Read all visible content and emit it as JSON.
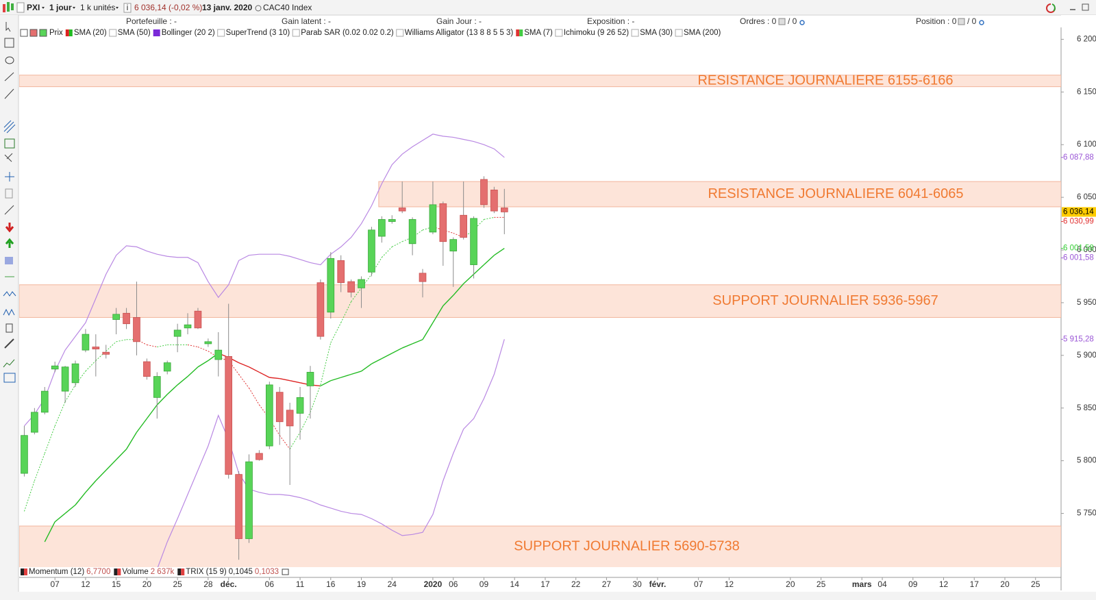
{
  "toolbar": {
    "symbol": "PXI",
    "period": "1 jour",
    "units": "1 k unités",
    "last": "6 036,14 (-0,02 %)",
    "date": "13 janv. 2020",
    "instrument": "CAC40 Index"
  },
  "header": [
    "Portefeuille : -",
    "Gain latent : -",
    "Gain Jour : -",
    "Exposition : -",
    "Ordres : 0",
    "/ 0",
    "Position : 0",
    "/ 0"
  ],
  "chart_data": {
    "type": "candlestick",
    "candle_colors": {
      "up": "#58d458",
      "down": "#e46f6f"
    },
    "open": [
      5788,
      5827,
      5846,
      5887,
      5866,
      5874,
      5905,
      5908,
      5903,
      5934,
      5940,
      5936,
      5894,
      5860,
      5885,
      5918,
      5926,
      5942,
      5911,
      5896,
      5899,
      5787,
      5726,
      5807,
      5814,
      5865,
      5848,
      5845,
      5871,
      5969,
      5941,
      5990,
      5970,
      5964,
      5979,
      6013,
      6027,
      6040,
      6006,
      5978,
      6017,
      6044,
      5999,
      6033,
      5986,
      6067,
      6057,
      6040
    ],
    "high": [
      5833,
      5850,
      5870,
      5894,
      5890,
      5895,
      5925,
      5920,
      5910,
      5945,
      5945,
      5970,
      5897,
      5884,
      5895,
      5930,
      5940,
      5945,
      5916,
      5922,
      5949,
      5790,
      5806,
      5810,
      5875,
      5870,
      5855,
      5870,
      5890,
      5972,
      5998,
      5995,
      5972,
      5975,
      6022,
      6032,
      6033,
      6065,
      6031,
      5982,
      6065,
      6046,
      6012,
      6065,
      6032,
      6070,
      6060,
      6058
    ],
    "low": [
      5785,
      5825,
      5844,
      5884,
      5855,
      5870,
      5903,
      5880,
      5897,
      5920,
      5925,
      5900,
      5877,
      5840,
      5882,
      5903,
      5920,
      5925,
      5908,
      5880,
      5783,
      5706,
      5722,
      5800,
      5811,
      5815,
      5777,
      5820,
      5840,
      5915,
      5935,
      5960,
      5955,
      5945,
      5975,
      6007,
      6025,
      6035,
      5995,
      5955,
      6015,
      5985,
      5965,
      6010,
      5973,
      6040,
      6035,
      6015
    ],
    "close": [
      5824,
      5846,
      5866,
      5890,
      5889,
      5892,
      5920,
      5906,
      5901,
      5939,
      5930,
      5913,
      5880,
      5880,
      5893,
      5924,
      5929,
      5926,
      5913,
      5905,
      5787,
      5726,
      5799,
      5801,
      5872,
      5837,
      5833,
      5860,
      5884,
      5918,
      5992,
      5969,
      5960,
      5972,
      6019,
      6029,
      6029,
      6037,
      6029,
      5970,
      6043,
      6008,
      6010,
      6012,
      6030,
      6043,
      6037,
      6036.14
    ],
    "indicators": [
      {
        "name": "Prix",
        "active": true
      },
      {
        "name": "SMA (20)",
        "active": true,
        "style": "solid",
        "colors": [
          "#22bb22",
          "#dd2222"
        ],
        "values": [
          null,
          null,
          5723,
          5742,
          5750,
          5758,
          5770,
          5781,
          5791,
          5801,
          5811,
          5827,
          5840,
          5853,
          5863,
          5872,
          5880,
          5889,
          5895,
          5902,
          5898,
          5893,
          5889,
          5884,
          5879,
          5878,
          5876,
          5874,
          5872,
          5871,
          5876,
          5879,
          5882,
          5885,
          5892,
          5897,
          5902,
          5907,
          5911,
          5915,
          5931,
          5947,
          5957,
          5968,
          5977,
          5986,
          5995,
          6001.58
        ]
      },
      {
        "name": "SMA (50)",
        "active": false
      },
      {
        "name": "Bollinger (20 2)",
        "active": true,
        "color": "#b988e3",
        "upper": [
          5833,
          5844,
          5859,
          5885,
          5905,
          5918,
          5931,
          5954,
          5977,
          5995,
          6004,
          6003,
          5999,
          5996,
          5994,
          5993,
          5993,
          5988,
          5970,
          5955,
          5967,
          5990,
          5995,
          5996,
          5996,
          5996,
          5994,
          5991,
          5988,
          5986,
          5996,
          6003,
          6012,
          6025,
          6042,
          6063,
          6081,
          6091,
          6098,
          6104,
          6110,
          6108,
          6107,
          6105,
          6103,
          6100,
          6096,
          6087.88
        ],
        "lower": [
          null,
          null,
          null,
          null,
          null,
          null,
          null,
          null,
          null,
          null,
          null,
          null,
          null,
          5697,
          5723,
          5745,
          5768,
          5791,
          5814,
          5843,
          5820,
          5788,
          5773,
          5770,
          5768,
          5768,
          5767,
          5765,
          5762,
          5758,
          5755,
          5752,
          5750,
          5749,
          5745,
          5740,
          5734,
          5729,
          5730,
          5732,
          5749,
          5781,
          5807,
          5830,
          5840,
          5859,
          5882,
          5915.28
        ]
      },
      {
        "name": "SuperTrend (3 10)",
        "active": false
      },
      {
        "name": "Parab SAR (0.02 0.02 0.2)",
        "active": false
      },
      {
        "name": "Williams Alligator (13 8 8 5 5 3)",
        "active": false
      },
      {
        "name": "SMA (7)",
        "active": true,
        "style": "dotted",
        "colors": [
          "#44cc44",
          "#e03333"
        ],
        "values": [
          5752,
          5781,
          5807,
          5833,
          5856,
          5872,
          5885,
          5895,
          5904,
          5913,
          5915,
          5915,
          5910,
          5908,
          5910,
          5910,
          5910,
          5908,
          5904,
          5898,
          5895,
          5882,
          5869,
          5853,
          5840,
          5824,
          5811,
          5827,
          5846,
          5872,
          5912,
          5931,
          5951,
          5964,
          5977,
          5993,
          6003,
          6008,
          6012,
          6019,
          6022,
          6019,
          6016,
          6012,
          6019,
          6029,
          6031,
          6030.99
        ]
      },
      {
        "name": "Ichimoku (9 26 52)",
        "active": false
      },
      {
        "name": "SMA (30)",
        "active": false
      },
      {
        "name": "SMA (200)",
        "active": false
      }
    ],
    "zones": [
      {
        "label": "RESISTANCE JOURNALIERE 6155-6166",
        "low": 6155,
        "high": 6166
      },
      {
        "label": "RESISTANCE JOURNALIERE 6041-6065",
        "low": 6041,
        "high": 6065
      },
      {
        "label": "SUPPORT JOURNALIER 5936-5967",
        "low": 5936,
        "high": 5967
      },
      {
        "label": "SUPPORT JOURNALIER 5690-5738",
        "low": 5690,
        "high": 5738
      }
    ],
    "price_tags": [
      {
        "value": 6087.88,
        "label": "6 087,88",
        "color": "#9a55d6"
      },
      {
        "value": 6036.14,
        "label": "6 036,14",
        "color": "#000000",
        "background": "#ffcc00"
      },
      {
        "value": 6030.99,
        "label": "6 030,99",
        "color": "#e03030"
      },
      {
        "value": 6001.58,
        "label": "6 001,58",
        "color": "#33cc33"
      },
      {
        "value": 6001.58,
        "label": "6 001,58",
        "color": "#9a55d6"
      },
      {
        "value": 5915.28,
        "label": "5 915,28",
        "color": "#9a55d6"
      }
    ],
    "ylim": [
      5699,
      6210
    ],
    "yticks": [
      {
        "value": 5750,
        "label": "5 750"
      },
      {
        "value": 5800,
        "label": "5 800"
      },
      {
        "value": 5850,
        "label": "5 850"
      },
      {
        "value": 5900,
        "label": "5 900"
      },
      {
        "value": 5950,
        "label": "5 950"
      },
      {
        "value": 6000,
        "label": "6 000"
      },
      {
        "value": 6050,
        "label": "6 050"
      },
      {
        "value": 6100,
        "label": "6 100"
      },
      {
        "value": 6150,
        "label": "6 150"
      },
      {
        "value": 6200,
        "label": "6 200"
      }
    ],
    "xlim": [
      -0.5,
      101.5
    ],
    "xticks": [
      {
        "value": 3,
        "label": "07"
      },
      {
        "value": 6,
        "label": "12"
      },
      {
        "value": 9,
        "label": "15"
      },
      {
        "value": 12,
        "label": "20"
      },
      {
        "value": 15,
        "label": "25"
      },
      {
        "value": 18,
        "label": "28"
      },
      {
        "value": 20,
        "label": "déc."
      },
      {
        "value": 24,
        "label": "06"
      },
      {
        "value": 27,
        "label": "11"
      },
      {
        "value": 30,
        "label": "16"
      },
      {
        "value": 33,
        "label": "19"
      },
      {
        "value": 36,
        "label": "24"
      },
      {
        "value": 40,
        "label": "2020"
      },
      {
        "value": 42,
        "label": "06"
      },
      {
        "value": 45,
        "label": "09"
      },
      {
        "value": 48,
        "label": "14"
      },
      {
        "value": 51,
        "label": "17"
      },
      {
        "value": 54,
        "label": "22"
      },
      {
        "value": 57,
        "label": "27"
      },
      {
        "value": 60,
        "label": "30"
      },
      {
        "value": 62,
        "label": "févr."
      },
      {
        "value": 66,
        "label": "07"
      },
      {
        "value": 69,
        "label": "12"
      },
      {
        "value": 75,
        "label": "20"
      },
      {
        "value": 78,
        "label": "25"
      },
      {
        "value": 82,
        "label": "mars"
      },
      {
        "value": 84,
        "label": "04"
      },
      {
        "value": 87,
        "label": "09"
      },
      {
        "value": 90,
        "label": "12"
      },
      {
        "value": 93,
        "label": "17"
      },
      {
        "value": 96,
        "label": "20"
      },
      {
        "value": 99,
        "label": "25"
      }
    ],
    "sub_indicators": [
      {
        "name": "Momentum (12)",
        "values": [
          "6,7700"
        ],
        "colors": [
          "#c0504d"
        ]
      },
      {
        "name": "Volume",
        "values": [
          "2 637k"
        ],
        "colors": [
          "#c0504d"
        ]
      },
      {
        "name": "TRIX (15 9)",
        "values": [
          "0,1045",
          "0,1033"
        ],
        "colors": [
          "#222222",
          "#c0504d"
        ]
      }
    ]
  }
}
